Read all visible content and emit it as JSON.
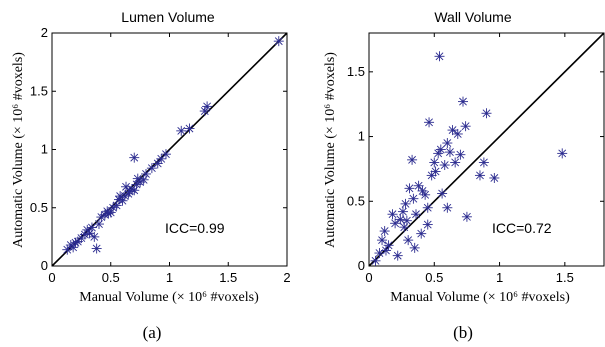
{
  "chart_data": [
    {
      "type": "scatter",
      "title": "Lumen Volume",
      "xlabel": "Manual Volume (× 10⁶ #voxels)",
      "ylabel": "Automatic Volume (× 10⁶ #voxels)",
      "xlim": [
        0,
        2
      ],
      "ylim": [
        0,
        2
      ],
      "xticks": [
        "0",
        "0.5",
        "1",
        "1.5",
        "2"
      ],
      "yticks": [
        "0",
        "0.5",
        "1",
        "1.5",
        "2"
      ],
      "annotation": "ICC=0.99",
      "panel_label": "(a)",
      "identity_line": true,
      "marker": "asterisk",
      "marker_color": "#2b2b8f",
      "points": [
        [
          0.13,
          0.14
        ],
        [
          0.16,
          0.18
        ],
        [
          0.18,
          0.16
        ],
        [
          0.2,
          0.2
        ],
        [
          0.22,
          0.21
        ],
        [
          0.28,
          0.27
        ],
        [
          0.3,
          0.31
        ],
        [
          0.32,
          0.28
        ],
        [
          0.34,
          0.33
        ],
        [
          0.36,
          0.25
        ],
        [
          0.38,
          0.15
        ],
        [
          0.4,
          0.36
        ],
        [
          0.42,
          0.42
        ],
        [
          0.45,
          0.44
        ],
        [
          0.47,
          0.47
        ],
        [
          0.5,
          0.46
        ],
        [
          0.52,
          0.5
        ],
        [
          0.55,
          0.52
        ],
        [
          0.57,
          0.57
        ],
        [
          0.6,
          0.56
        ],
        [
          0.62,
          0.6
        ],
        [
          0.63,
          0.68
        ],
        [
          0.65,
          0.62
        ],
        [
          0.66,
          0.64
        ],
        [
          0.68,
          0.66
        ],
        [
          0.7,
          0.65
        ],
        [
          0.7,
          0.93
        ],
        [
          0.72,
          0.7
        ],
        [
          0.73,
          0.75
        ],
        [
          0.75,
          0.72
        ],
        [
          0.78,
          0.74
        ],
        [
          0.8,
          0.79
        ],
        [
          0.85,
          0.84
        ],
        [
          0.9,
          0.88
        ],
        [
          0.93,
          0.92
        ],
        [
          0.97,
          0.96
        ],
        [
          1.1,
          1.16
        ],
        [
          1.17,
          1.18
        ],
        [
          1.3,
          1.33
        ],
        [
          1.32,
          1.37
        ],
        [
          1.93,
          1.93
        ],
        [
          0.58,
          0.6
        ],
        [
          0.48,
          0.45
        ],
        [
          0.25,
          0.24
        ]
      ]
    },
    {
      "type": "scatter",
      "title": "Wall Volume",
      "xlabel": "Manual Volume (× 10⁶ #voxels)",
      "ylabel": "Automatic Volume (× 10⁶ #voxels)",
      "xlim": [
        0,
        1.8
      ],
      "ylim": [
        0,
        1.8
      ],
      "xticks": [
        "0",
        "0.5",
        "1",
        "1.5"
      ],
      "yticks": [
        "0",
        "0.5",
        "1",
        "1.5"
      ],
      "annotation": "ICC=0.72",
      "panel_label": "(b)",
      "identity_line": true,
      "marker": "asterisk",
      "marker_color": "#2b2b8f",
      "points": [
        [
          0.05,
          0.04
        ],
        [
          0.08,
          0.1
        ],
        [
          0.1,
          0.2
        ],
        [
          0.12,
          0.27
        ],
        [
          0.13,
          0.12
        ],
        [
          0.15,
          0.16
        ],
        [
          0.18,
          0.4
        ],
        [
          0.2,
          0.33
        ],
        [
          0.22,
          0.08
        ],
        [
          0.24,
          0.36
        ],
        [
          0.26,
          0.42
        ],
        [
          0.27,
          0.3
        ],
        [
          0.29,
          0.35
        ],
        [
          0.3,
          0.2
        ],
        [
          0.31,
          0.6
        ],
        [
          0.33,
          0.82
        ],
        [
          0.34,
          0.52
        ],
        [
          0.36,
          0.4
        ],
        [
          0.38,
          0.62
        ],
        [
          0.4,
          0.25
        ],
        [
          0.41,
          0.58
        ],
        [
          0.43,
          0.55
        ],
        [
          0.45,
          0.45
        ],
        [
          0.46,
          1.11
        ],
        [
          0.48,
          0.7
        ],
        [
          0.5,
          0.8
        ],
        [
          0.51,
          0.73
        ],
        [
          0.53,
          0.87
        ],
        [
          0.54,
          1.62
        ],
        [
          0.55,
          0.9
        ],
        [
          0.56,
          0.56
        ],
        [
          0.58,
          0.78
        ],
        [
          0.6,
          0.95
        ],
        [
          0.62,
          0.88
        ],
        [
          0.64,
          1.05
        ],
        [
          0.66,
          0.8
        ],
        [
          0.68,
          1.02
        ],
        [
          0.7,
          0.86
        ],
        [
          0.72,
          1.27
        ],
        [
          0.74,
          1.08
        ],
        [
          0.75,
          0.38
        ],
        [
          0.85,
          0.7
        ],
        [
          0.88,
          0.8
        ],
        [
          0.9,
          1.18
        ],
        [
          0.96,
          0.68
        ],
        [
          1.48,
          0.87
        ],
        [
          0.35,
          0.14
        ],
        [
          0.28,
          0.48
        ],
        [
          0.6,
          0.45
        ],
        [
          0.45,
          0.32
        ]
      ]
    }
  ]
}
